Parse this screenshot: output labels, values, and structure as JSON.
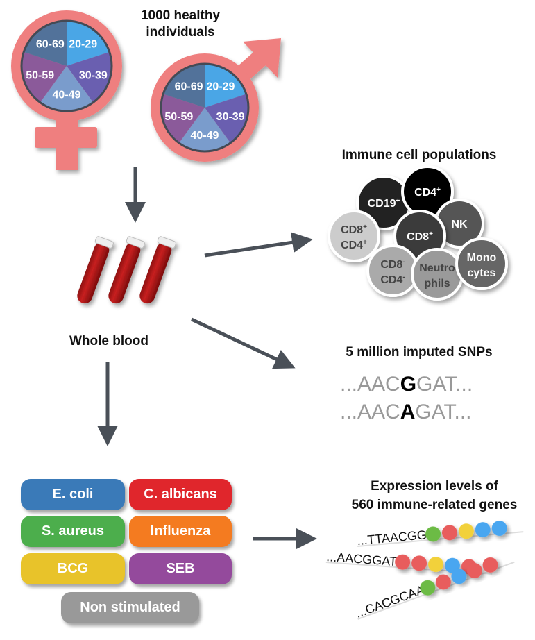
{
  "title": "1000 healthy individuals",
  "title_lines": [
    "1000 healthy",
    "individuals"
  ],
  "age_groups": [
    "20-29",
    "30-39",
    "40-49",
    "50-59",
    "60-69"
  ],
  "age_colors": [
    "#4aa6e6",
    "#6a5fb0",
    "#7a9ccc",
    "#8b5a9a",
    "#52729a"
  ],
  "sex_symbol_color": "#ef7f7f",
  "whole_blood": "Whole blood",
  "immune": {
    "title": "Immune cell populations",
    "cells": [
      {
        "label": [
          "CD19",
          "+"
        ],
        "color": "#222222"
      },
      {
        "label": [
          "CD4",
          "+"
        ],
        "color": "#000000"
      },
      {
        "label": [
          "NK",
          ""
        ],
        "color": "#555555"
      },
      {
        "label": [
          "CD8",
          "+"
        ],
        "color": "#3a3a3a"
      },
      {
        "label": [
          "CD8",
          "+",
          "CD4",
          "+"
        ],
        "color": "#cccccc"
      },
      {
        "label": [
          "CD8",
          "-",
          "CD4",
          "-"
        ],
        "color": "#aaaaaa"
      },
      {
        "label": [
          "Neutro",
          "phils"
        ],
        "color": "#9a9a9a"
      },
      {
        "label": [
          "Mono",
          "cytes"
        ],
        "color": "#666666"
      }
    ]
  },
  "snps": {
    "title": "5 million imputed SNPs",
    "rows": [
      {
        "prefix": "...AAC",
        "allele": "G",
        "suffix": "GAT..."
      },
      {
        "prefix": "...AAC",
        "allele": "A",
        "suffix": "GAT..."
      }
    ]
  },
  "stimuli": [
    {
      "label": "E. coli",
      "color": "#3a7ab8"
    },
    {
      "label": "C. albicans",
      "color": "#e0262c"
    },
    {
      "label": "S. aureus",
      "color": "#4cae4c"
    },
    {
      "label": "Influenza",
      "color": "#f47b20"
    },
    {
      "label": "BCG",
      "color": "#e8c32a"
    },
    {
      "label": "SEB",
      "color": "#944a9c"
    },
    {
      "label": "Non stimulated",
      "color": "#999999"
    }
  ],
  "expression": {
    "title_lines": [
      "Expression levels of",
      "560 immune-related genes"
    ],
    "rows": [
      {
        "seq": "...TTAACGG",
        "dots": [
          "#6cbb45",
          "#e85d5d",
          "#f2d13a",
          "#4aa6f0",
          "#4aa6f0"
        ]
      },
      {
        "seq": "...AACGGAT",
        "dots": [
          "#e85d5d",
          "#e85d5d",
          "#f2d13a",
          "#4aa6f0",
          "#e85d5d"
        ]
      },
      {
        "seq": "...CACGCAA",
        "dots": [
          "#6cbb45",
          "#e85d5d",
          "#4aa6f0",
          "#e85d5d",
          "#e85d5d"
        ]
      }
    ]
  },
  "arrow_color": "#4a5058"
}
